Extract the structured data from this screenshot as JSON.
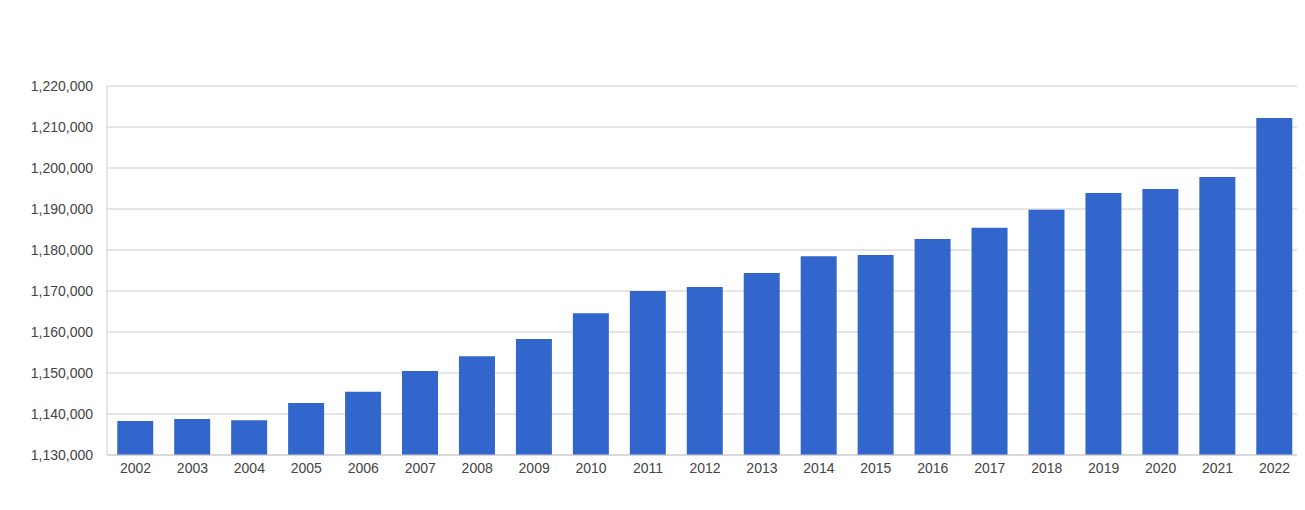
{
  "chart_data": {
    "type": "bar",
    "categories": [
      "2002",
      "2003",
      "2004",
      "2005",
      "2006",
      "2007",
      "2008",
      "2009",
      "2010",
      "2011",
      "2012",
      "2013",
      "2014",
      "2015",
      "2016",
      "2017",
      "2018",
      "2019",
      "2020",
      "2021",
      "2022"
    ],
    "values": [
      1138300,
      1138800,
      1138500,
      1142700,
      1145400,
      1150500,
      1154100,
      1158300,
      1164600,
      1170000,
      1171000,
      1174400,
      1178500,
      1178800,
      1182700,
      1185400,
      1189800,
      1193900,
      1194900,
      1197800,
      1212200
    ],
    "color": "#3366cc",
    "ylim": [
      1130000,
      1220000
    ],
    "yticks": [
      {
        "value": 1130000,
        "label": "1,130,000"
      },
      {
        "value": 1140000,
        "label": "1,140,000"
      },
      {
        "value": 1150000,
        "label": "1,150,000"
      },
      {
        "value": 1160000,
        "label": "1,160,000"
      },
      {
        "value": 1170000,
        "label": "1,170,000"
      },
      {
        "value": 1180000,
        "label": "1,180,000"
      },
      {
        "value": 1190000,
        "label": "1,190,000"
      },
      {
        "value": 1200000,
        "label": "1,200,000"
      },
      {
        "value": 1210000,
        "label": "1,210,000"
      },
      {
        "value": 1220000,
        "label": "1,220,000"
      }
    ],
    "grid": true
  }
}
